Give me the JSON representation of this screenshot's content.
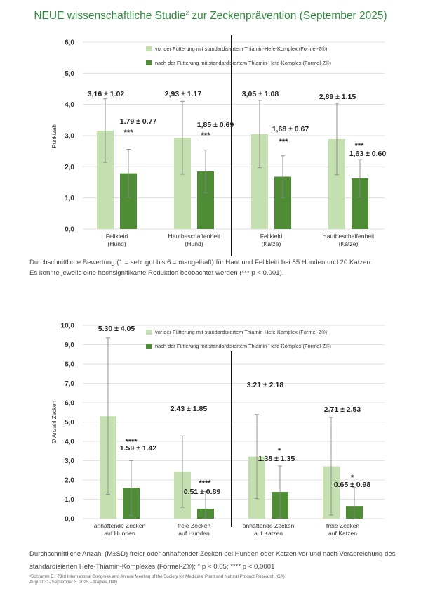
{
  "title": {
    "main": "NEUE wissenschaftliche Studie",
    "sup": "2",
    "rest": " zur Zeckenprävention (September 2025)"
  },
  "colors": {
    "before": "#c5e0b0",
    "after": "#4e8c36",
    "title": "#2f8a3e"
  },
  "chart_data": [
    {
      "type": "bar",
      "title": "",
      "ylabel": "Punktzahl",
      "ylim": [
        0,
        6
      ],
      "yticks": [
        "0,0",
        "1,0",
        "2,0",
        "3,0",
        "4,0",
        "5,0",
        "6,0"
      ],
      "legend": {
        "placement": "top-right",
        "before": "vor der Fütterung mit standardisiertem Thiamin-Hefe-Komplex (Formel-Z®)",
        "after": "nach der Fütterung mit standardisiertem Thiamin-Hefe-Komplex (Formel-Z®)"
      },
      "categories": [
        [
          "Fellkleid",
          "(Hund)"
        ],
        [
          "Hautbeschaffenheit",
          "(Hund)"
        ],
        [
          "Fellkleid",
          "(Katze)"
        ],
        [
          "Hautbeschaffenheit",
          "(Katze)"
        ]
      ],
      "series": [
        {
          "name": "vor",
          "values": [
            3.16,
            2.93,
            3.05,
            2.89
          ],
          "sd": [
            1.02,
            1.17,
            1.08,
            1.15
          ],
          "labels": [
            "3,16 ± 1.02",
            "2,93 ± 1.17",
            "3,05 ± 1.08",
            "2,89 ± 1.15"
          ]
        },
        {
          "name": "nach",
          "values": [
            1.79,
            1.85,
            1.68,
            1.63
          ],
          "sd": [
            0.77,
            0.69,
            0.67,
            0.6
          ],
          "labels": [
            "1.79 ± 0.77",
            "1,85 ± 0.69",
            "1,68 ± 0.67",
            "1,63 ± 0.60"
          ],
          "sig": [
            "***",
            "***",
            "***",
            "***"
          ]
        }
      ]
    },
    {
      "type": "bar",
      "title": "",
      "ylabel": "Ø Anzahl Zecken",
      "ylim": [
        0,
        10
      ],
      "yticks": [
        "0,0",
        "1,0",
        "2,0",
        "3,0",
        "4,0",
        "5,0",
        "6,0",
        "7,0",
        "8,0",
        "9,0",
        "10,0"
      ],
      "legend": {
        "placement": "top-right",
        "before": "vor der Fütterung mit standardisiertem Thiamin-Hefe-Komplex (Formel-Z®)",
        "after": "nach der Fütterung mit standardisiertem Thiamin-Hefe-Komplex (Formel-Z®)"
      },
      "categories": [
        [
          "anhaftende Zecken",
          "auf Hunden"
        ],
        [
          "freie Zecken",
          "auf Hunden"
        ],
        [
          "anhaftende Zecken",
          "auf Katzen"
        ],
        [
          "freie Zecken",
          "auf Katzen"
        ]
      ],
      "series": [
        {
          "name": "vor",
          "values": [
            5.3,
            2.43,
            3.21,
            2.71
          ],
          "sd": [
            4.05,
            1.85,
            2.18,
            2.53
          ],
          "labels": [
            "5.30 ± 4.05",
            "2.43 ± 1.85",
            "3.21 ± 2.18",
            "2.71 ± 2.53"
          ]
        },
        {
          "name": "nach",
          "values": [
            1.59,
            0.51,
            1.38,
            0.65
          ],
          "sd": [
            1.42,
            0.89,
            1.35,
            0.98
          ],
          "labels": [
            "1.59 ± 1.42",
            "0.51 ± 0.89",
            "1.38 ± 1.35",
            "0.65 ±  0.98"
          ],
          "sig": [
            "****",
            "****",
            "*",
            "*"
          ]
        }
      ]
    }
  ],
  "captions": {
    "chart1_line1": "Durchschnittliche Bewertung (1 = sehr gut bis 6 = mangelhaft) für Haut und Fellkleid bei 85 Hunden und 20 Katzen.",
    "chart1_line2": "Es konnte jeweils eine hochsignifikante Reduktion beobachtet werden (*** p < 0,001).",
    "chart2_line1": "Durchschnittliche Anzahl (M±SD) freier oder anhaftender Zecken bei Hunden oder Katzen vor und nach Verabreichung des",
    "chart2_line2": "standardisierten Hefe-Thiamin-Komplexes (Formel-Z®); * p < 0,05; **** p < 0,0001"
  },
  "footnote": {
    "line1": "²Schramm E.; 73rd International Congress and Annual Meeting of the Society for Medicinal Plant and Natural Product Research (GA)",
    "line2": "August 31- September 3, 2025 – Naples, Italy"
  }
}
